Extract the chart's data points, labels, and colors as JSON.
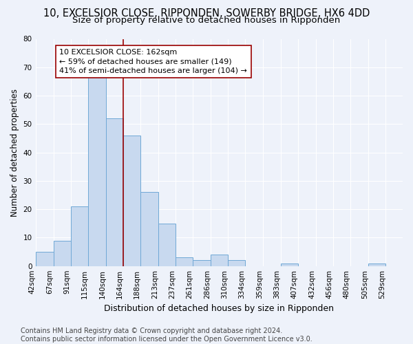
{
  "title_line1": "10, EXCELSIOR CLOSE, RIPPONDEN, SOWERBY BRIDGE, HX6 4DD",
  "title_line2": "Size of property relative to detached houses in Ripponden",
  "xlabel": "Distribution of detached houses by size in Ripponden",
  "ylabel": "Number of detached properties",
  "bin_labels": [
    "42sqm",
    "67sqm",
    "91sqm",
    "115sqm",
    "140sqm",
    "164sqm",
    "188sqm",
    "213sqm",
    "237sqm",
    "261sqm",
    "286sqm",
    "310sqm",
    "334sqm",
    "359sqm",
    "383sqm",
    "407sqm",
    "432sqm",
    "456sqm",
    "480sqm",
    "505sqm",
    "529sqm"
  ],
  "bar_values": [
    5,
    9,
    21,
    67,
    52,
    46,
    26,
    15,
    3,
    2,
    4,
    2,
    0,
    0,
    1,
    0,
    0,
    0,
    0,
    1,
    0
  ],
  "bin_edges": [
    42,
    67,
    91,
    115,
    140,
    164,
    188,
    213,
    237,
    261,
    286,
    310,
    334,
    359,
    383,
    407,
    432,
    456,
    480,
    505,
    529,
    553
  ],
  "bar_color": "#C8D9EF",
  "bar_edge_color": "#6FA8D6",
  "vline_x": 164,
  "vline_color": "#990000",
  "annotation_line1": "10 EXCELSIOR CLOSE: 162sqm",
  "annotation_line2": "← 59% of detached houses are smaller (149)",
  "annotation_line3": "41% of semi-detached houses are larger (104) →",
  "annotation_box_color": "white",
  "annotation_box_edge": "#990000",
  "ylim": [
    0,
    80
  ],
  "yticks": [
    0,
    10,
    20,
    30,
    40,
    50,
    60,
    70,
    80
  ],
  "footer_line1": "Contains HM Land Registry data © Crown copyright and database right 2024.",
  "footer_line2": "Contains public sector information licensed under the Open Government Licence v3.0.",
  "background_color": "#EEF2FA",
  "grid_color": "#FFFFFF",
  "title1_fontsize": 10.5,
  "title2_fontsize": 9.5,
  "xlabel_fontsize": 9,
  "ylabel_fontsize": 8.5,
  "tick_fontsize": 7.5,
  "annotation_fontsize": 8,
  "footer_fontsize": 7
}
